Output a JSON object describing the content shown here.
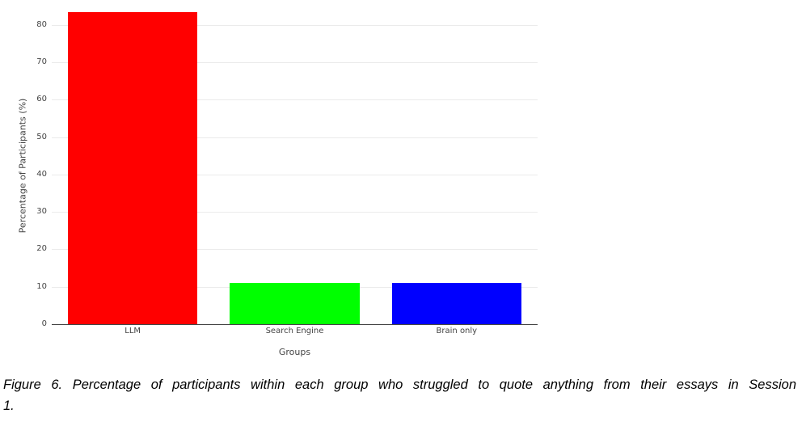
{
  "figure": {
    "caption_lines": [
      "Figure 6. Percentage of participants within each group who struggled to quote anything from their essays in Session",
      "1."
    ]
  },
  "chart_data": {
    "type": "bar",
    "title": "",
    "categories": [
      "LLM",
      "Search Engine",
      "Brain only"
    ],
    "values": [
      83.3,
      11.1,
      11.1
    ],
    "bar_colors": [
      "#ff0000",
      "#00ff00",
      "#0000ff"
    ],
    "xlabel": "Groups",
    "ylabel": "Percentage of Participants (%)",
    "ylim": [
      0,
      84.5
    ],
    "yticks": [
      0,
      10,
      20,
      30,
      40,
      50,
      60,
      70,
      80
    ],
    "grid": true,
    "legend_position": "none",
    "colors": {
      "background": "#ffffff",
      "gridline": "#ebebeb",
      "axis_line": "#444444",
      "tick_text": "#444444"
    }
  }
}
